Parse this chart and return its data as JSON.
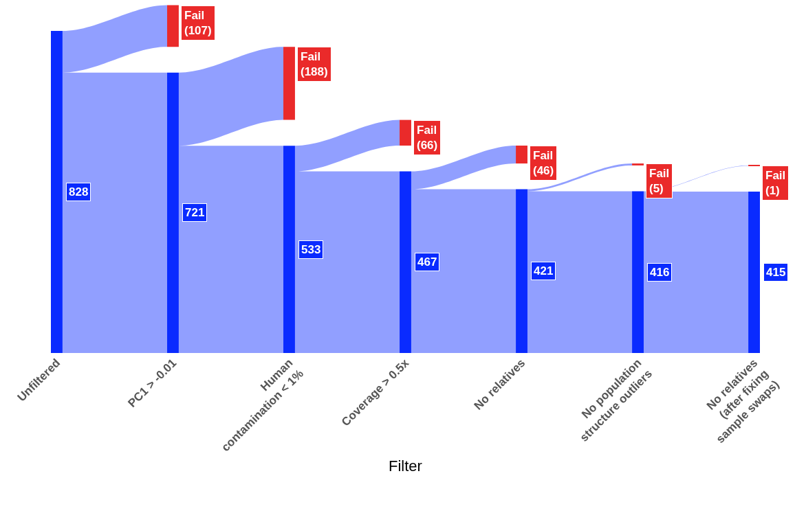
{
  "chart_data": {
    "type": "other",
    "xlabel": "Filter",
    "data_labels": true,
    "categories": [
      "Unfiltered",
      "PC1 > -0.01",
      "Human contamination < 1%",
      "Coverage > 0.5x",
      "No relatives",
      "No population structure outliers",
      "No relatives (after fixing sample swaps)"
    ],
    "series": [
      {
        "color": "#0a2bff",
        "values": [
          828,
          721,
          533,
          467,
          421,
          416,
          415
        ]
      },
      {
        "name": "Fail",
        "color": "#ea2a2a",
        "values": [
          null,
          107,
          188,
          66,
          46,
          5,
          1
        ],
        "value_labels": [
          null,
          "(107)",
          "(188)",
          "(66)",
          "(46)",
          "(5)",
          "(1)"
        ]
      }
    ]
  }
}
